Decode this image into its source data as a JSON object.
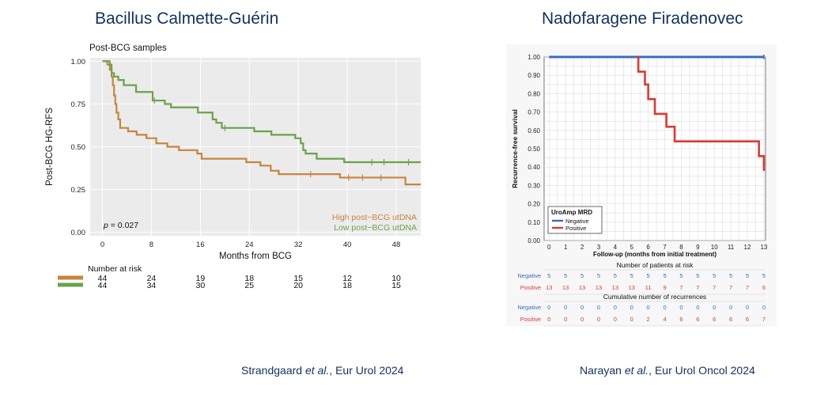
{
  "left_panel": {
    "heading": "Bacillus Calmette-Guérin",
    "citation": {
      "authors": "Strandgaard ",
      "etal": "et al.",
      "journal": ", Eur Urol 2024"
    }
  },
  "right_panel": {
    "heading": "Nadofaragene Firadenovec",
    "citation": {
      "authors": "Narayan ",
      "etal": "et al.",
      "journal": ", Eur Urol Oncol 2024"
    }
  },
  "chart_data": [
    {
      "type": "line",
      "subtype": "kaplan-meier",
      "title": "Post-BCG samples",
      "xlabel": "Months from BCG",
      "ylabel": "Post-BCG HG-RFS",
      "xlim": [
        -2,
        52
      ],
      "ylim": [
        -0.02,
        1.02
      ],
      "xticks": [
        0,
        8,
        16,
        24,
        32,
        40,
        48
      ],
      "yticks": [
        "0.00",
        "0.25",
        "0.50",
        "0.75",
        "1.00"
      ],
      "grid": true,
      "legend_position": "bottom-right",
      "annotation": {
        "prefix": "p",
        "text": " = 0.027"
      },
      "series": [
        {
          "name": "High post−BCG utDNA",
          "color": "#c8843f",
          "steps": [
            [
              0,
              1.0
            ],
            [
              0.8,
              0.98
            ],
            [
              1.2,
              0.95
            ],
            [
              1.5,
              0.91
            ],
            [
              1.7,
              0.86
            ],
            [
              1.9,
              0.8
            ],
            [
              2.1,
              0.75
            ],
            [
              2.3,
              0.7
            ],
            [
              2.6,
              0.66
            ],
            [
              2.9,
              0.61
            ],
            [
              4.2,
              0.59
            ],
            [
              5.6,
              0.57
            ],
            [
              7.2,
              0.55
            ],
            [
              8.8,
              0.52
            ],
            [
              10.6,
              0.5
            ],
            [
              12.5,
              0.48
            ],
            [
              15.5,
              0.46
            ],
            [
              16.2,
              0.43
            ],
            [
              23.5,
              0.41
            ],
            [
              25.8,
              0.39
            ],
            [
              27.5,
              0.36
            ],
            [
              28.8,
              0.34
            ],
            [
              38.8,
              0.32
            ],
            [
              49.5,
              0.28
            ],
            [
              52,
              0.28
            ]
          ],
          "censored": [
            [
              34,
              0.34
            ],
            [
              40.2,
              0.32
            ],
            [
              42.5,
              0.32
            ],
            [
              45.5,
              0.32
            ]
          ]
        },
        {
          "name": "Low post−BCG utDNA",
          "color": "#6ba24a",
          "steps": [
            [
              0,
              1.0
            ],
            [
              1.2,
              0.98
            ],
            [
              1.5,
              0.93
            ],
            [
              1.9,
              0.91
            ],
            [
              2.6,
              0.89
            ],
            [
              3.5,
              0.86
            ],
            [
              5.5,
              0.82
            ],
            [
              8.2,
              0.77
            ],
            [
              10.2,
              0.75
            ],
            [
              11.2,
              0.73
            ],
            [
              15.6,
              0.7
            ],
            [
              18.0,
              0.66
            ],
            [
              18.6,
              0.64
            ],
            [
              19.5,
              0.61
            ],
            [
              24.8,
              0.59
            ],
            [
              27.6,
              0.57
            ],
            [
              31.5,
              0.55
            ],
            [
              32.4,
              0.52
            ],
            [
              32.8,
              0.48
            ],
            [
              33.2,
              0.46
            ],
            [
              35.0,
              0.43
            ],
            [
              39.5,
              0.41
            ],
            [
              52,
              0.41
            ]
          ],
          "censored": [
            [
              8.5,
              0.77
            ],
            [
              20,
              0.61
            ],
            [
              44,
              0.41
            ],
            [
              46,
              0.41
            ],
            [
              50,
              0.41
            ]
          ]
        }
      ],
      "risk_table": {
        "title": "Number at risk",
        "times": [
          0,
          8,
          16,
          24,
          32,
          40,
          48
        ],
        "rows": [
          {
            "color": "#c8843f",
            "values": [
              "44",
              "24",
              "19",
              "18",
              "15",
              "12",
              "10"
            ]
          },
          {
            "color": "#6ba24a",
            "values": [
              "44",
              "34",
              "30",
              "25",
              "20",
              "18",
              "15"
            ]
          }
        ]
      }
    },
    {
      "type": "line",
      "subtype": "kaplan-meier",
      "title": "",
      "xlabel": "Follow-up (months from initial treatment)",
      "ylabel": "Recurrence-free survival",
      "xlim": [
        -0.3,
        13.1
      ],
      "ylim": [
        0,
        1.0
      ],
      "xticks": [
        0,
        1,
        2,
        3,
        4,
        5,
        6,
        7,
        8,
        9,
        10,
        11,
        12,
        13
      ],
      "yticks": [
        "0.00",
        "0.10",
        "0.20",
        "0.30",
        "0.40",
        "0.50",
        "0.60",
        "0.70",
        "0.80",
        "0.90",
        "1.00"
      ],
      "grid": true,
      "legend_title": "UroAmp MRD",
      "legend_position": "bottom-left",
      "series": [
        {
          "name": "Negative",
          "color": "#3a6bc4",
          "steps": [
            [
              0,
              1.0
            ],
            [
              13,
              1.0
            ]
          ],
          "censored": []
        },
        {
          "name": "Positive",
          "color": "#d93a35",
          "steps": [
            [
              5.3,
              1.0
            ],
            [
              5.4,
              0.92
            ],
            [
              5.8,
              0.85
            ],
            [
              6.0,
              0.77
            ],
            [
              6.4,
              0.69
            ],
            [
              7.1,
              0.62
            ],
            [
              7.6,
              0.54
            ],
            [
              12.7,
              0.46
            ],
            [
              13.0,
              0.38
            ]
          ],
          "censored": []
        }
      ],
      "risk_table": {
        "title": "Number of patients at risk",
        "times": [
          0,
          1,
          2,
          3,
          4,
          5,
          6,
          7,
          8,
          9,
          10,
          11,
          12,
          13
        ],
        "rows": [
          {
            "label": "Negative",
            "color": "#3a6bc4",
            "values": [
              "5",
              "5",
              "5",
              "5",
              "5",
              "5",
              "5",
              "5",
              "5",
              "5",
              "5",
              "5",
              "5",
              "5"
            ]
          },
          {
            "label": "Positive",
            "color": "#d93a35",
            "values": [
              "13",
              "13",
              "13",
              "13",
              "13",
              "13",
              "11",
              "9",
              "7",
              "7",
              "7",
              "7",
              "7",
              "6"
            ]
          }
        ]
      },
      "cumulative_table": {
        "title": "Cumulative number of recurrences",
        "times": [
          0,
          1,
          2,
          3,
          4,
          5,
          6,
          7,
          8,
          9,
          10,
          11,
          12,
          13
        ],
        "rows": [
          {
            "label": "Negative",
            "color": "#3a6bc4",
            "values": [
              "0",
              "0",
              "0",
              "0",
              "0",
              "0",
              "0",
              "0",
              "0",
              "0",
              "0",
              "0",
              "0",
              "0"
            ]
          },
          {
            "label": "Positive",
            "color": "#d93a35",
            "values": [
              "0",
              "0",
              "0",
              "0",
              "0",
              "0",
              "2",
              "4",
              "6",
              "6",
              "6",
              "6",
              "6",
              "7"
            ]
          }
        ]
      }
    }
  ]
}
